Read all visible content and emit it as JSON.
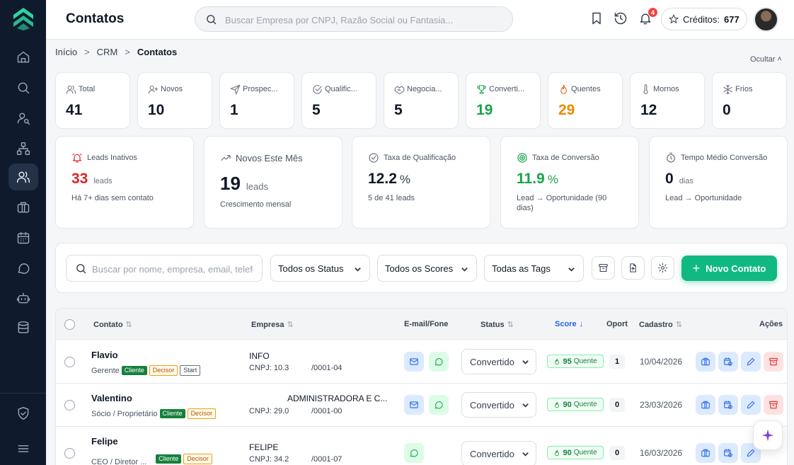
{
  "header": {
    "title": "Contatos",
    "search_placeholder": "Buscar Empresa por CNPJ, Razão Social ou Fantasia...",
    "notifications_count": "4",
    "credits_label": "Créditos:",
    "credits_value": "677"
  },
  "breadcrumb": {
    "items": [
      "Início",
      "CRM",
      "Contatos"
    ],
    "separator": ">"
  },
  "hide_label": "Ocultar ˄",
  "stats": [
    {
      "label": "Total",
      "value": "41",
      "icon": "users-icon"
    },
    {
      "label": "Novos",
      "value": "10",
      "icon": "user-plus-icon"
    },
    {
      "label": "Prospec...",
      "value": "1",
      "icon": "send-icon"
    },
    {
      "label": "Qualific...",
      "value": "5",
      "icon": "check-circle-icon"
    },
    {
      "label": "Negocia...",
      "value": "5",
      "icon": "handshake-icon"
    },
    {
      "label": "Converti...",
      "value": "19",
      "icon": "trophy-icon"
    },
    {
      "label": "Quentes",
      "value": "29",
      "icon": "flame-icon"
    },
    {
      "label": "Mornos",
      "value": "12",
      "icon": "thermometer-icon"
    },
    {
      "label": "Frios",
      "value": "0",
      "icon": "snowflake-icon"
    }
  ],
  "metrics": [
    {
      "label": "Leads Inativos",
      "value": "33",
      "unit": "leads",
      "sub": "Há 7+ dias sem contato",
      "icon": "bell-icon",
      "color": "#dc2626"
    },
    {
      "label": "Novos Este Mês",
      "value": "19",
      "unit": "leads",
      "sub": "Crescimento mensal",
      "icon": "trend-up-icon",
      "color": "#111827"
    },
    {
      "label": "Taxa de Qualificação",
      "value": "12.2",
      "unit": "%",
      "sub": "5 de 41 leads",
      "icon": "check-circle-icon",
      "color": "#111827"
    },
    {
      "label": "Taxa de Conversão",
      "value": "11.9",
      "unit": "%",
      "sub": "Lead → Oportunidade (90 dias)",
      "icon": "target-icon",
      "color": "#16a34a"
    },
    {
      "label": "Tempo Médio Conversão",
      "value": "0",
      "unit": "dias",
      "sub": "Lead → Oportunidade",
      "icon": "timer-icon",
      "color": "#111827"
    }
  ],
  "filters": {
    "search_placeholder": "Buscar por nome, empresa, email, telefone",
    "status": "Todos os Status",
    "scores": "Todos os Scores",
    "tags": "Todas as Tags",
    "new_contact": "Novo Contato"
  },
  "table": {
    "columns": {
      "contato": "Contato",
      "empresa": "Empresa",
      "email_fone": "E-mail/Fone",
      "status": "Status",
      "score": "Score",
      "oport": "Oport",
      "cadastro": "Cadastro",
      "acoes": "Ações"
    },
    "rows": [
      {
        "name": "Flavio",
        "role": "Gerente",
        "tags": [
          "Cliente",
          "Decisor",
          "Start"
        ],
        "company": "INFO",
        "cnpj_a": "CNPJ: 10.3",
        "cnpj_b": "/0001-04",
        "has_email": true,
        "status": "Convertido",
        "score": "95",
        "score_label": "Quente",
        "oport": "1",
        "date": "10/04/2026"
      },
      {
        "name": "Valentino",
        "role": "Sócio / Proprietário",
        "tags": [
          "Cliente",
          "Decisor"
        ],
        "company": "ADMINISTRADORA E C...",
        "cnpj_a": "CNPJ: 29.0",
        "cnpj_b": "/0001-00",
        "has_email": true,
        "status": "Convertido",
        "score": "90",
        "score_label": "Quente",
        "oport": "0",
        "date": "23/03/2026"
      },
      {
        "name": "Felipe",
        "role": "CEO / Diretor ...",
        "tags": [
          "Cliente",
          "Decisor"
        ],
        "company": "FELIPE",
        "cnpj_a": "CNPJ: 34.2",
        "cnpj_b": "/0001-07",
        "has_email": false,
        "status": "Convertido",
        "score": "90",
        "score_label": "Quente",
        "oport": "0",
        "date": "16/03/2026"
      }
    ]
  }
}
